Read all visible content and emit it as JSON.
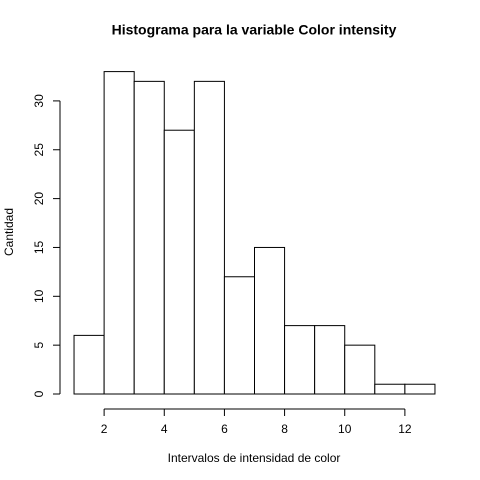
{
  "chart_data": {
    "type": "histogram",
    "title": "Histograma para la variable Color intensity",
    "x_label": "Intervalos de intensidad de color",
    "y_label": "Cantidad",
    "bins": [
      1,
      2,
      3,
      4,
      5,
      6,
      7,
      8,
      9,
      10,
      11,
      12,
      13
    ],
    "values": [
      6,
      33,
      32,
      27,
      32,
      12,
      15,
      7,
      7,
      5,
      1,
      1
    ],
    "xlim": [
      0.52,
      13.48
    ],
    "ylim": [
      -1.32,
      34.32
    ],
    "xticks": [
      2,
      4,
      6,
      8,
      10,
      12
    ],
    "yticks": [
      0,
      5,
      10,
      15,
      20,
      25,
      30
    ],
    "color": "#ffffff"
  }
}
